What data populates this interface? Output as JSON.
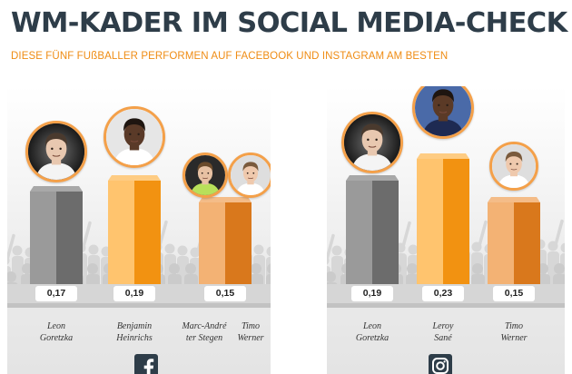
{
  "title": "WM-KADER IM SOCIAL MEDIA-CHECK",
  "subtitle": "DIESE FÜNF FUßBALLER PERFORMEN AUF FACEBOOK UND INSTAGRAM AM BESTEN",
  "colors": {
    "title": "#2e3d49",
    "accent": "#ef8c14",
    "bar_gray_light": "#9a9a9a",
    "bar_gray_dark": "#6c6c6c",
    "bar_orange_light": "#ffc46e",
    "bar_orange_dark": "#f29211",
    "bar_peach_light": "#f3b274",
    "bar_peach_dark": "#d9781c"
  },
  "panels": [
    {
      "platform": "Facebook",
      "icon": "facebook-icon"
    },
    {
      "platform": "Instagram",
      "icon": "instagram-icon"
    }
  ],
  "chart_data": [
    {
      "type": "bar",
      "platform": "Facebook",
      "categories": [
        "Leon Goretzka",
        "Benjamin Heinrichs",
        "Marc-André ter Stegen",
        "Timo Werner"
      ],
      "display_names": [
        "Leon\nGoretzka",
        "Benjamin\nHeinrichs",
        "Marc-André\nter Stegen",
        "Timo\nWerner"
      ],
      "value_labels": [
        "0,17",
        "0,19",
        "0,15"
      ],
      "bars": [
        {
          "value": 0.17,
          "label": "0,17",
          "players": [
            0
          ],
          "color": "gray"
        },
        {
          "value": 0.19,
          "label": "0,19",
          "players": [
            1
          ],
          "color": "orange"
        },
        {
          "value": 0.15,
          "label": "0,15",
          "players": [
            2,
            3
          ],
          "color": "peach"
        }
      ],
      "ylim": [
        0,
        0.25
      ]
    },
    {
      "type": "bar",
      "platform": "Instagram",
      "categories": [
        "Leon Goretzka",
        "Leroy Sané",
        "Timo Werner"
      ],
      "display_names": [
        "Leon\nGoretzka",
        "Leroy\nSané",
        "Timo\nWerner"
      ],
      "value_labels": [
        "0,19",
        "0,23",
        "0,15"
      ],
      "bars": [
        {
          "value": 0.19,
          "label": "0,19",
          "players": [
            0
          ],
          "color": "gray"
        },
        {
          "value": 0.23,
          "label": "0,23",
          "players": [
            1
          ],
          "color": "orange"
        },
        {
          "value": 0.15,
          "label": "0,15",
          "players": [
            2
          ],
          "color": "peach"
        }
      ],
      "ylim": [
        0,
        0.25
      ]
    }
  ]
}
